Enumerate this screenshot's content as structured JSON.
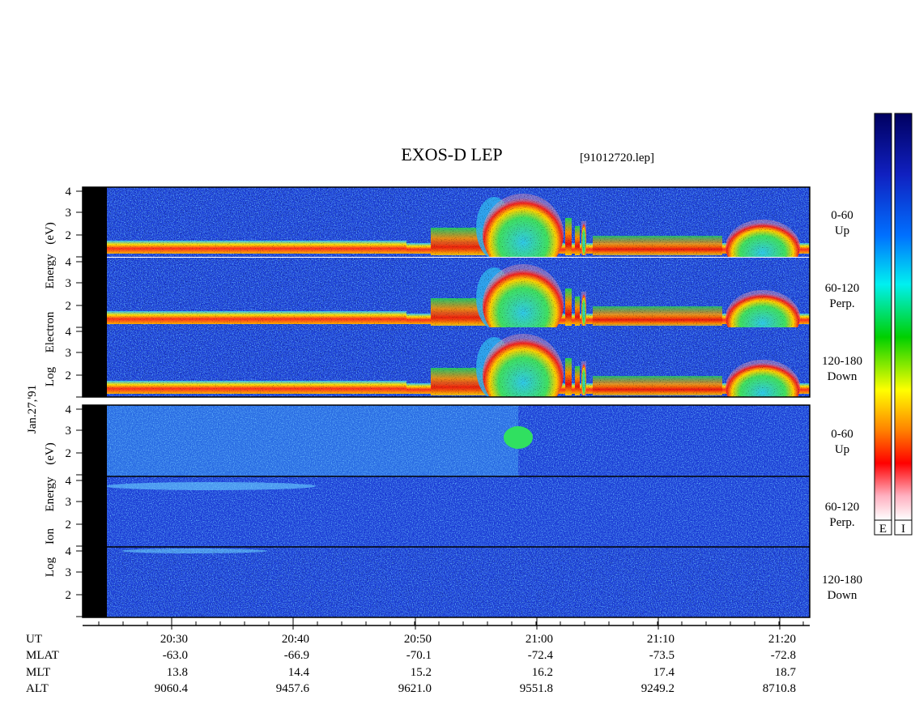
{
  "title": "EXOS-D LEP",
  "file": "[91012720.lep]",
  "date": "Jan.27,'91",
  "electron_axis": [
    "Log",
    "Electron",
    "Energy",
    "(eV)"
  ],
  "ion_axis": [
    "Log",
    "Ion",
    "Energy",
    "(eV)"
  ],
  "channels": [
    {
      "range": "0-60",
      "direction": "Up"
    },
    {
      "range": "60-120",
      "direction": "Perp."
    },
    {
      "range": "120-180",
      "direction": "Down"
    }
  ],
  "energy_ticks": [
    "4",
    "3",
    "2"
  ],
  "time_axis": {
    "rows": [
      {
        "name": "UT",
        "values": [
          "20:30",
          "20:40",
          "20:50",
          "21:00",
          "21:10",
          "21:20"
        ]
      },
      {
        "name": "MLAT",
        "values": [
          "-63.0",
          "-66.9",
          "-70.1",
          "-72.4",
          "-73.5",
          "-72.8"
        ]
      },
      {
        "name": "MLT",
        "values": [
          "13.8",
          "14.4",
          "15.2",
          "16.2",
          "17.4",
          "18.7"
        ]
      },
      {
        "name": "ALT",
        "values": [
          "9060.4",
          "9457.6",
          "9621.0",
          "9551.8",
          "9249.2",
          "8710.8"
        ]
      }
    ]
  },
  "colorbars": [
    "E",
    "I"
  ]
}
